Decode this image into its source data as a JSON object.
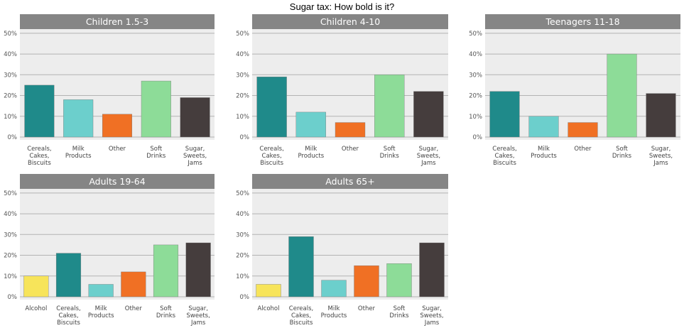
{
  "title": "Sugar tax: How bold is it?",
  "colors": {
    "strip_bg": "#858585",
    "panel_bg": "#ededed",
    "grid": "#b3b3b3",
    "Alcohol": "#f7e45a",
    "Cereals, Cakes, Biscuits": "#1f8a8a",
    "Milk Products": "#6ccfcc",
    "Other": "#f07024",
    "Soft Drinks": "#8ddc98",
    "Sugar, Sweets, Jams": "#453d3d"
  },
  "chart_data": [
    {
      "type": "bar",
      "title": "Children 1.5-3",
      "categories": [
        "Cereals,\nCakes,\nBiscuits",
        "Milk\nProducts",
        "Other",
        "Soft\nDrinks",
        "Sugar,\nSweets,\nJams"
      ],
      "series_keys": [
        "Cereals, Cakes, Biscuits",
        "Milk Products",
        "Other",
        "Soft Drinks",
        "Sugar, Sweets, Jams"
      ],
      "values": [
        25,
        18,
        11,
        27,
        19
      ],
      "yticks": [
        "0%",
        "10%",
        "20%",
        "30%",
        "40%",
        "50%"
      ],
      "ylim": [
        0,
        52
      ]
    },
    {
      "type": "bar",
      "title": "Children 4-10",
      "categories": [
        "Cereals,\nCakes,\nBiscuits",
        "Milk\nProducts",
        "Other",
        "Soft\nDrinks",
        "Sugar,\nSweets,\nJams"
      ],
      "series_keys": [
        "Cereals, Cakes, Biscuits",
        "Milk Products",
        "Other",
        "Soft Drinks",
        "Sugar, Sweets, Jams"
      ],
      "values": [
        29,
        12,
        7,
        30,
        22
      ],
      "yticks": [
        "0%",
        "10%",
        "20%",
        "30%",
        "40%",
        "50%"
      ],
      "ylim": [
        0,
        52
      ]
    },
    {
      "type": "bar",
      "title": "Teenagers 11-18",
      "categories": [
        "Cereals,\nCakes,\nBiscuits",
        "Milk\nProducts",
        "Other",
        "Soft\nDrinks",
        "Sugar,\nSweets,\nJams"
      ],
      "series_keys": [
        "Cereals, Cakes, Biscuits",
        "Milk Products",
        "Other",
        "Soft Drinks",
        "Sugar, Sweets, Jams"
      ],
      "values": [
        22,
        10,
        7,
        40,
        21
      ],
      "yticks": [
        "0%",
        "10%",
        "20%",
        "30%",
        "40%",
        "50%"
      ],
      "ylim": [
        0,
        52
      ]
    },
    {
      "type": "bar",
      "title": "Adults 19-64",
      "categories": [
        "Alcohol",
        "Cereals,\nCakes,\nBiscuits",
        "Milk\nProducts",
        "Other",
        "Soft\nDrinks",
        "Sugar,\nSweets,\nJams"
      ],
      "series_keys": [
        "Alcohol",
        "Cereals, Cakes, Biscuits",
        "Milk Products",
        "Other",
        "Soft Drinks",
        "Sugar, Sweets, Jams"
      ],
      "values": [
        10,
        21,
        6,
        12,
        25,
        26
      ],
      "yticks": [
        "0%",
        "10%",
        "20%",
        "30%",
        "40%",
        "50%"
      ],
      "ylim": [
        0,
        52
      ]
    },
    {
      "type": "bar",
      "title": "Adults 65+",
      "categories": [
        "Alcohol",
        "Cereals,\nCakes,\nBiscuits",
        "Milk\nProducts",
        "Other",
        "Soft\nDrinks",
        "Sugar,\nSweets,\nJams"
      ],
      "series_keys": [
        "Alcohol",
        "Cereals, Cakes, Biscuits",
        "Milk Products",
        "Other",
        "Soft Drinks",
        "Sugar, Sweets, Jams"
      ],
      "values": [
        6,
        29,
        8,
        15,
        16,
        26
      ],
      "yticks": [
        "0%",
        "10%",
        "20%",
        "30%",
        "40%",
        "50%"
      ],
      "ylim": [
        0,
        52
      ]
    }
  ]
}
